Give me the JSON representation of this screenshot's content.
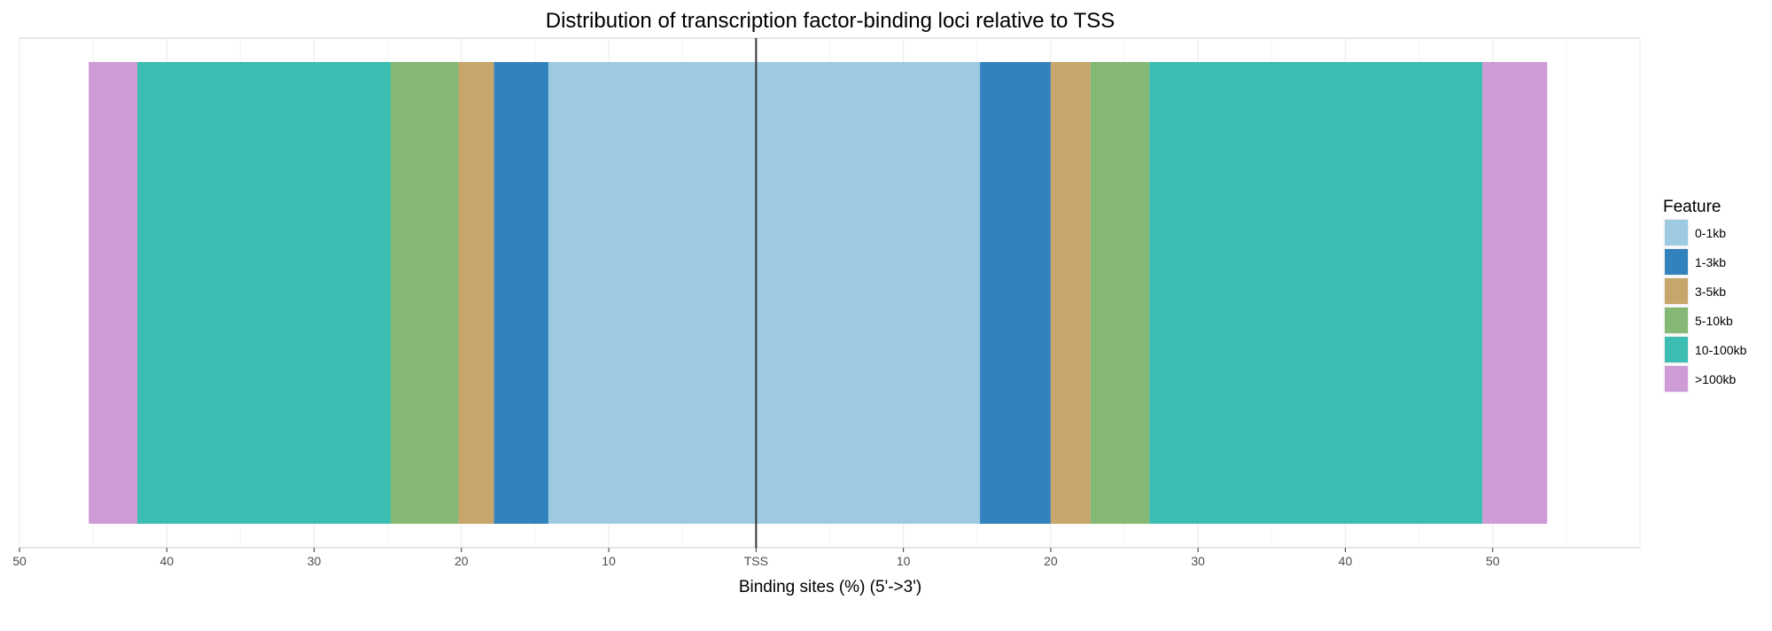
{
  "chart_data": {
    "type": "bar",
    "orientation": "horizontal",
    "stacked": true,
    "title": "Distribution of transcription factor-binding loci relative to TSS",
    "xlabel": "Binding sites (%) (5'->3')",
    "ylabel": "",
    "xlim": [
      -50,
      60
    ],
    "x_ticks": [
      -50,
      -40,
      -30,
      -20,
      -10,
      0,
      10,
      20,
      30,
      40,
      50
    ],
    "x_tick_labels": [
      "50",
      "40",
      "30",
      "20",
      "10",
      "TSS",
      "10",
      "20",
      "30",
      "40",
      "50"
    ],
    "grid": true,
    "legend_position": "right",
    "legend_title": "Feature",
    "series": [
      {
        "name": "0-1kb",
        "color": "#9ecae1",
        "upstream": 14.1,
        "downstream": 15.2
      },
      {
        "name": "1-3kb",
        "color": "#3182bd",
        "upstream": 3.7,
        "downstream": 4.8
      },
      {
        "name": "3-5kb",
        "color": "#c6a66b",
        "upstream": 2.4,
        "downstream": 2.7
      },
      {
        "name": "5-10kb",
        "color": "#85b874",
        "upstream": 4.6,
        "downstream": 4.0
      },
      {
        "name": "10-100kb",
        "color": "#3cbdb1",
        "upstream": 17.2,
        "downstream": 22.6
      },
      {
        "name": ">100kb",
        "color": "#ce9bd7",
        "upstream": 3.3,
        "downstream": 4.4
      }
    ]
  }
}
